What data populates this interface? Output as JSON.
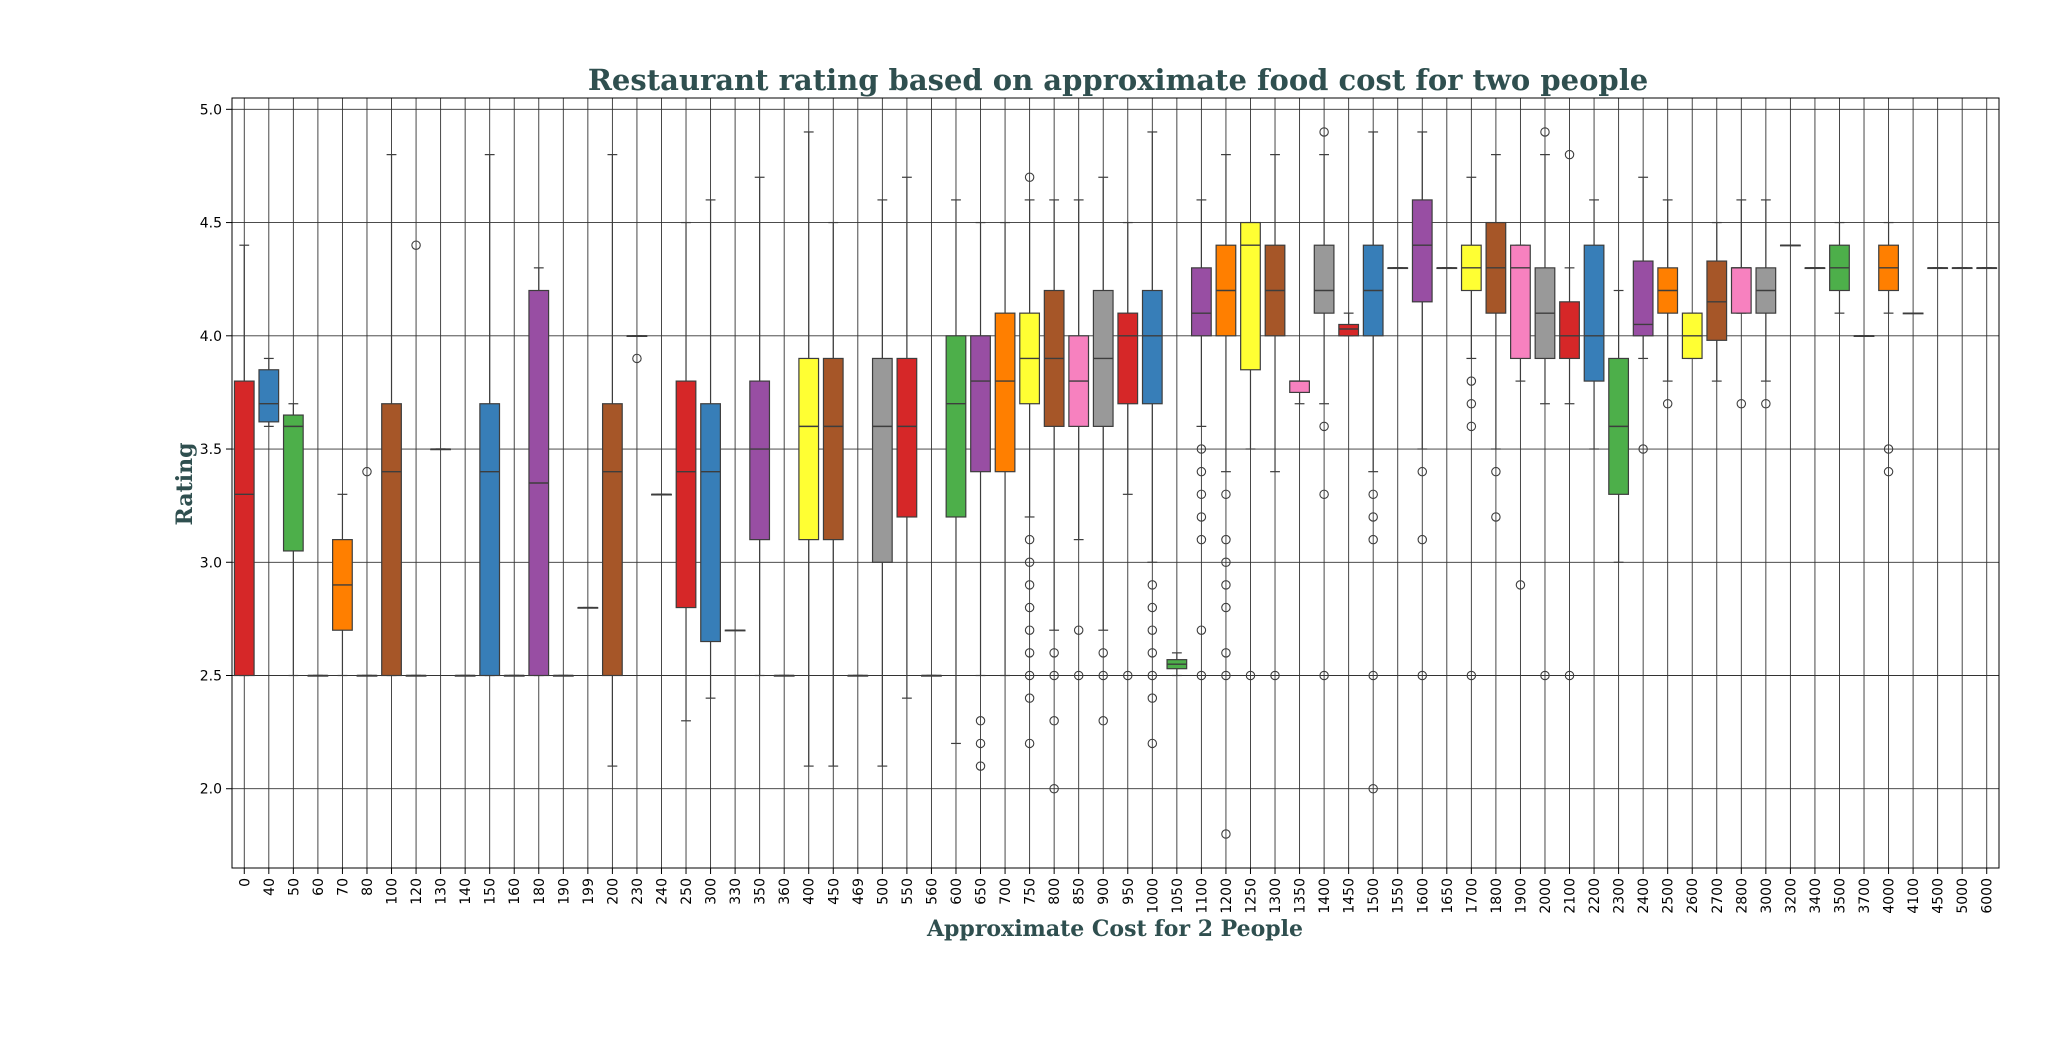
{
  "chart_data": {
    "type": "box",
    "title": "Restaurant rating based on approximate food cost for two people",
    "xlabel": "Approximate Cost for 2 People",
    "ylabel": "Rating",
    "ylim": [
      1.65,
      5.05
    ],
    "yticks": [
      "2.0",
      "2.5",
      "3.0",
      "3.5",
      "4.0",
      "4.5",
      "5.0"
    ],
    "grid": true,
    "palette": [
      "#d62728",
      "#377eb8",
      "#4daf4a",
      "#984ea3",
      "#ff7f00",
      "#ffff33",
      "#a65628",
      "#f781bf",
      "#999999"
    ],
    "categories": [
      "0",
      "40",
      "50",
      "60",
      "70",
      "80",
      "100",
      "120",
      "130",
      "140",
      "150",
      "160",
      "180",
      "190",
      "199",
      "200",
      "230",
      "240",
      "250",
      "300",
      "330",
      "350",
      "360",
      "400",
      "450",
      "469",
      "500",
      "550",
      "560",
      "600",
      "650",
      "700",
      "750",
      "800",
      "850",
      "900",
      "950",
      "1000",
      "1050",
      "1100",
      "1200",
      "1250",
      "1300",
      "1350",
      "1400",
      "1450",
      "1500",
      "1550",
      "1600",
      "1650",
      "1700",
      "1800",
      "1900",
      "2000",
      "2100",
      "2200",
      "2300",
      "2400",
      "2500",
      "2600",
      "2700",
      "2800",
      "3000",
      "3200",
      "3400",
      "3500",
      "3700",
      "4000",
      "4100",
      "4500",
      "5000",
      "6000"
    ],
    "boxes": [
      {
        "category": "0",
        "q1": 2.5,
        "median": 3.3,
        "q3": 3.8,
        "whislo": 2.5,
        "whishi": 4.4,
        "fliers": []
      },
      {
        "category": "40",
        "q1": 3.62,
        "median": 3.7,
        "q3": 3.85,
        "whislo": 3.6,
        "whishi": 3.9,
        "fliers": []
      },
      {
        "category": "50",
        "q1": 3.05,
        "median": 3.6,
        "q3": 3.65,
        "whislo": 2.5,
        "whishi": 3.7,
        "fliers": []
      },
      {
        "category": "60",
        "q1": 2.5,
        "median": 2.5,
        "q3": 2.5,
        "whislo": 2.5,
        "whishi": 2.5,
        "fliers": []
      },
      {
        "category": "70",
        "q1": 2.7,
        "median": 2.9,
        "q3": 3.1,
        "whislo": 2.5,
        "whishi": 3.3,
        "fliers": []
      },
      {
        "category": "80",
        "q1": 2.5,
        "median": 2.5,
        "q3": 2.5,
        "whislo": 2.5,
        "whishi": 2.5,
        "fliers": [
          3.4
        ]
      },
      {
        "category": "100",
        "q1": 2.5,
        "median": 3.4,
        "q3": 3.7,
        "whislo": 2.5,
        "whishi": 4.8,
        "fliers": []
      },
      {
        "category": "120",
        "q1": 2.5,
        "median": 2.5,
        "q3": 2.5,
        "whislo": 2.5,
        "whishi": 2.5,
        "fliers": [
          4.4
        ]
      },
      {
        "category": "130",
        "q1": 3.5,
        "median": 3.5,
        "q3": 3.5,
        "whislo": 3.5,
        "whishi": 3.5,
        "fliers": []
      },
      {
        "category": "140",
        "q1": 2.5,
        "median": 2.5,
        "q3": 2.5,
        "whislo": 2.5,
        "whishi": 2.5,
        "fliers": []
      },
      {
        "category": "150",
        "q1": 2.5,
        "median": 3.4,
        "q3": 3.7,
        "whislo": 2.5,
        "whishi": 4.8,
        "fliers": []
      },
      {
        "category": "160",
        "q1": 2.5,
        "median": 2.5,
        "q3": 2.5,
        "whislo": 2.5,
        "whishi": 2.5,
        "fliers": []
      },
      {
        "category": "180",
        "q1": 2.5,
        "median": 3.35,
        "q3": 4.2,
        "whislo": 2.5,
        "whishi": 4.3,
        "fliers": []
      },
      {
        "category": "190",
        "q1": 2.5,
        "median": 2.5,
        "q3": 2.5,
        "whislo": 2.5,
        "whishi": 2.5,
        "fliers": []
      },
      {
        "category": "199",
        "q1": 2.8,
        "median": 2.8,
        "q3": 2.8,
        "whislo": 2.8,
        "whishi": 2.8,
        "fliers": []
      },
      {
        "category": "200",
        "q1": 2.5,
        "median": 3.4,
        "q3": 3.7,
        "whislo": 2.1,
        "whishi": 4.8,
        "fliers": []
      },
      {
        "category": "230",
        "q1": 4.0,
        "median": 4.0,
        "q3": 4.0,
        "whislo": 4.0,
        "whishi": 4.0,
        "fliers": [
          3.9
        ]
      },
      {
        "category": "240",
        "q1": 3.3,
        "median": 3.3,
        "q3": 3.3,
        "whislo": 3.3,
        "whishi": 3.3,
        "fliers": []
      },
      {
        "category": "250",
        "q1": 2.8,
        "median": 3.4,
        "q3": 3.8,
        "whislo": 2.3,
        "whishi": 4.5,
        "fliers": []
      },
      {
        "category": "300",
        "q1": 2.65,
        "median": 3.4,
        "q3": 3.7,
        "whislo": 2.4,
        "whishi": 4.6,
        "fliers": []
      },
      {
        "category": "330",
        "q1": 2.7,
        "median": 2.7,
        "q3": 2.7,
        "whislo": 2.7,
        "whishi": 2.7,
        "fliers": []
      },
      {
        "category": "350",
        "q1": 3.1,
        "median": 3.5,
        "q3": 3.8,
        "whislo": 2.5,
        "whishi": 4.7,
        "fliers": []
      },
      {
        "category": "360",
        "q1": 2.5,
        "median": 2.5,
        "q3": 2.5,
        "whislo": 2.5,
        "whishi": 2.5,
        "fliers": []
      },
      {
        "category": "400",
        "q1": 3.1,
        "median": 3.6,
        "q3": 3.9,
        "whislo": 2.1,
        "whishi": 4.9,
        "fliers": []
      },
      {
        "category": "450",
        "q1": 3.1,
        "median": 3.6,
        "q3": 3.9,
        "whislo": 2.1,
        "whishi": 4.5,
        "fliers": []
      },
      {
        "category": "469",
        "q1": 2.5,
        "median": 2.5,
        "q3": 2.5,
        "whislo": 2.5,
        "whishi": 2.5,
        "fliers": []
      },
      {
        "category": "500",
        "q1": 3.0,
        "median": 3.6,
        "q3": 3.9,
        "whislo": 2.1,
        "whishi": 4.6,
        "fliers": []
      },
      {
        "category": "550",
        "q1": 3.2,
        "median": 3.6,
        "q3": 3.9,
        "whislo": 2.4,
        "whishi": 4.7,
        "fliers": []
      },
      {
        "category": "560",
        "q1": 2.5,
        "median": 2.5,
        "q3": 2.5,
        "whislo": 2.5,
        "whishi": 2.5,
        "fliers": []
      },
      {
        "category": "600",
        "q1": 3.2,
        "median": 3.7,
        "q3": 4.0,
        "whislo": 2.2,
        "whishi": 4.6,
        "fliers": []
      },
      {
        "category": "650",
        "q1": 3.4,
        "median": 3.8,
        "q3": 4.0,
        "whislo": 2.5,
        "whishi": 4.5,
        "fliers": [
          2.3,
          2.2,
          2.1
        ]
      },
      {
        "category": "700",
        "q1": 3.4,
        "median": 3.8,
        "q3": 4.1,
        "whislo": 2.5,
        "whishi": 4.5,
        "fliers": []
      },
      {
        "category": "750",
        "q1": 3.7,
        "median": 3.9,
        "q3": 4.1,
        "whislo": 3.2,
        "whishi": 4.6,
        "fliers": [
          4.7,
          3.1,
          3.0,
          2.9,
          2.8,
          2.7,
          2.6,
          2.5,
          2.4,
          2.2
        ]
      },
      {
        "category": "800",
        "q1": 3.6,
        "median": 3.9,
        "q3": 4.2,
        "whislo": 2.7,
        "whishi": 4.6,
        "fliers": [
          2.6,
          2.5,
          2.3,
          2.0
        ]
      },
      {
        "category": "850",
        "q1": 3.6,
        "median": 3.8,
        "q3": 4.0,
        "whislo": 3.1,
        "whishi": 4.6,
        "fliers": [
          2.7,
          2.5
        ]
      },
      {
        "category": "900",
        "q1": 3.6,
        "median": 3.9,
        "q3": 4.2,
        "whislo": 2.7,
        "whishi": 4.7,
        "fliers": [
          2.6,
          2.5,
          2.3
        ]
      },
      {
        "category": "950",
        "q1": 3.7,
        "median": 4.0,
        "q3": 4.1,
        "whislo": 3.3,
        "whishi": 4.5,
        "fliers": [
          2.5
        ]
      },
      {
        "category": "1000",
        "q1": 3.7,
        "median": 4.0,
        "q3": 4.2,
        "whislo": 3.0,
        "whishi": 4.9,
        "fliers": [
          2.9,
          2.8,
          2.7,
          2.6,
          2.5,
          2.4,
          2.2
        ]
      },
      {
        "category": "1050",
        "q1": 2.53,
        "median": 2.55,
        "q3": 2.57,
        "whislo": 2.5,
        "whishi": 2.6,
        "fliers": []
      },
      {
        "category": "1100",
        "q1": 4.0,
        "median": 4.1,
        "q3": 4.3,
        "whislo": 3.6,
        "whishi": 4.6,
        "fliers": [
          3.5,
          3.4,
          3.3,
          3.2,
          3.1,
          2.7,
          2.5
        ]
      },
      {
        "category": "1200",
        "q1": 4.0,
        "median": 4.2,
        "q3": 4.4,
        "whislo": 3.4,
        "whishi": 4.8,
        "fliers": [
          3.3,
          3.1,
          3.0,
          2.9,
          2.8,
          2.6,
          2.5,
          1.8
        ]
      },
      {
        "category": "1250",
        "q1": 3.85,
        "median": 4.4,
        "q3": 4.5,
        "whislo": 3.5,
        "whishi": 4.5,
        "fliers": [
          2.5
        ]
      },
      {
        "category": "1300",
        "q1": 4.0,
        "median": 4.2,
        "q3": 4.4,
        "whislo": 3.4,
        "whishi": 4.8,
        "fliers": [
          2.5
        ]
      },
      {
        "category": "1350",
        "q1": 3.75,
        "median": 3.8,
        "q3": 3.8,
        "whislo": 3.7,
        "whishi": 3.8,
        "fliers": []
      },
      {
        "category": "1400",
        "q1": 4.1,
        "median": 4.2,
        "q3": 4.4,
        "whislo": 3.7,
        "whishi": 4.8,
        "fliers": [
          4.9,
          3.6,
          3.3,
          2.5
        ]
      },
      {
        "category": "1450",
        "q1": 4.0,
        "median": 4.03,
        "q3": 4.05,
        "whislo": 4.0,
        "whishi": 4.1,
        "fliers": []
      },
      {
        "category": "1500",
        "q1": 4.0,
        "median": 4.2,
        "q3": 4.4,
        "whislo": 3.4,
        "whishi": 4.9,
        "fliers": [
          3.3,
          3.2,
          3.1,
          2.5,
          2.0
        ]
      },
      {
        "category": "1550",
        "q1": 4.3,
        "median": 4.3,
        "q3": 4.3,
        "whislo": 4.3,
        "whishi": 4.3,
        "fliers": []
      },
      {
        "category": "1600",
        "q1": 4.15,
        "median": 4.4,
        "q3": 4.6,
        "whislo": 3.5,
        "whishi": 4.9,
        "fliers": [
          3.4,
          3.1,
          2.5
        ]
      },
      {
        "category": "1650",
        "q1": 4.3,
        "median": 4.3,
        "q3": 4.3,
        "whislo": 4.3,
        "whishi": 4.3,
        "fliers": []
      },
      {
        "category": "1700",
        "q1": 4.2,
        "median": 4.3,
        "q3": 4.4,
        "whislo": 3.9,
        "whishi": 4.7,
        "fliers": [
          3.8,
          3.7,
          3.6,
          2.5
        ]
      },
      {
        "category": "1800",
        "q1": 4.1,
        "median": 4.3,
        "q3": 4.5,
        "whislo": 3.5,
        "whishi": 4.8,
        "fliers": [
          3.4,
          3.2
        ]
      },
      {
        "category": "1900",
        "q1": 3.9,
        "median": 4.3,
        "q3": 4.4,
        "whislo": 3.8,
        "whishi": 4.4,
        "fliers": [
          2.9
        ]
      },
      {
        "category": "2000",
        "q1": 3.9,
        "median": 4.1,
        "q3": 4.3,
        "whislo": 3.7,
        "whishi": 4.8,
        "fliers": [
          4.9,
          2.5
        ]
      },
      {
        "category": "2100",
        "q1": 3.9,
        "median": 4.0,
        "q3": 4.15,
        "whislo": 3.7,
        "whishi": 4.3,
        "fliers": [
          4.8,
          2.5
        ]
      },
      {
        "category": "2200",
        "q1": 3.8,
        "median": 4.0,
        "q3": 4.4,
        "whislo": 3.5,
        "whishi": 4.6,
        "fliers": []
      },
      {
        "category": "2300",
        "q1": 3.3,
        "median": 3.6,
        "q3": 3.9,
        "whislo": 3.0,
        "whishi": 4.2,
        "fliers": []
      },
      {
        "category": "2400",
        "q1": 4.0,
        "median": 4.05,
        "q3": 4.33,
        "whislo": 3.9,
        "whishi": 4.7,
        "fliers": [
          3.5
        ]
      },
      {
        "category": "2500",
        "q1": 4.1,
        "median": 4.2,
        "q3": 4.3,
        "whislo": 3.8,
        "whishi": 4.6,
        "fliers": [
          3.7
        ]
      },
      {
        "category": "2600",
        "q1": 3.9,
        "median": 4.0,
        "q3": 4.1,
        "whislo": 3.9,
        "whishi": 4.1,
        "fliers": []
      },
      {
        "category": "2700",
        "q1": 3.98,
        "median": 4.15,
        "q3": 4.33,
        "whislo": 3.8,
        "whishi": 4.5,
        "fliers": []
      },
      {
        "category": "2800",
        "q1": 4.1,
        "median": 4.3,
        "q3": 4.3,
        "whislo": 4.1,
        "whishi": 4.6,
        "fliers": [
          3.7
        ]
      },
      {
        "category": "3000",
        "q1": 4.1,
        "median": 4.2,
        "q3": 4.3,
        "whislo": 3.8,
        "whishi": 4.6,
        "fliers": [
          3.7
        ]
      },
      {
        "category": "3200",
        "q1": 4.4,
        "median": 4.4,
        "q3": 4.4,
        "whislo": 4.4,
        "whishi": 4.4,
        "fliers": []
      },
      {
        "category": "3400",
        "q1": 4.3,
        "median": 4.3,
        "q3": 4.3,
        "whislo": 4.3,
        "whishi": 4.3,
        "fliers": []
      },
      {
        "category": "3500",
        "q1": 4.2,
        "median": 4.3,
        "q3": 4.4,
        "whislo": 4.1,
        "whishi": 4.5,
        "fliers": []
      },
      {
        "category": "3700",
        "q1": 4.0,
        "median": 4.0,
        "q3": 4.0,
        "whislo": 4.0,
        "whishi": 4.0,
        "fliers": []
      },
      {
        "category": "4000",
        "q1": 4.2,
        "median": 4.3,
        "q3": 4.4,
        "whislo": 4.1,
        "whishi": 4.5,
        "fliers": [
          3.5,
          3.4
        ]
      },
      {
        "category": "4100",
        "q1": 4.1,
        "median": 4.1,
        "q3": 4.1,
        "whislo": 4.1,
        "whishi": 4.1,
        "fliers": []
      },
      {
        "category": "4500",
        "q1": 4.3,
        "median": 4.3,
        "q3": 4.3,
        "whislo": 4.3,
        "whishi": 4.3,
        "fliers": []
      },
      {
        "category": "5000",
        "q1": 4.3,
        "median": 4.3,
        "q3": 4.3,
        "whislo": 4.3,
        "whishi": 4.3,
        "fliers": []
      },
      {
        "category": "6000",
        "q1": 4.3,
        "median": 4.3,
        "q3": 4.3,
        "whislo": 4.3,
        "whishi": 4.3,
        "fliers": []
      }
    ]
  }
}
